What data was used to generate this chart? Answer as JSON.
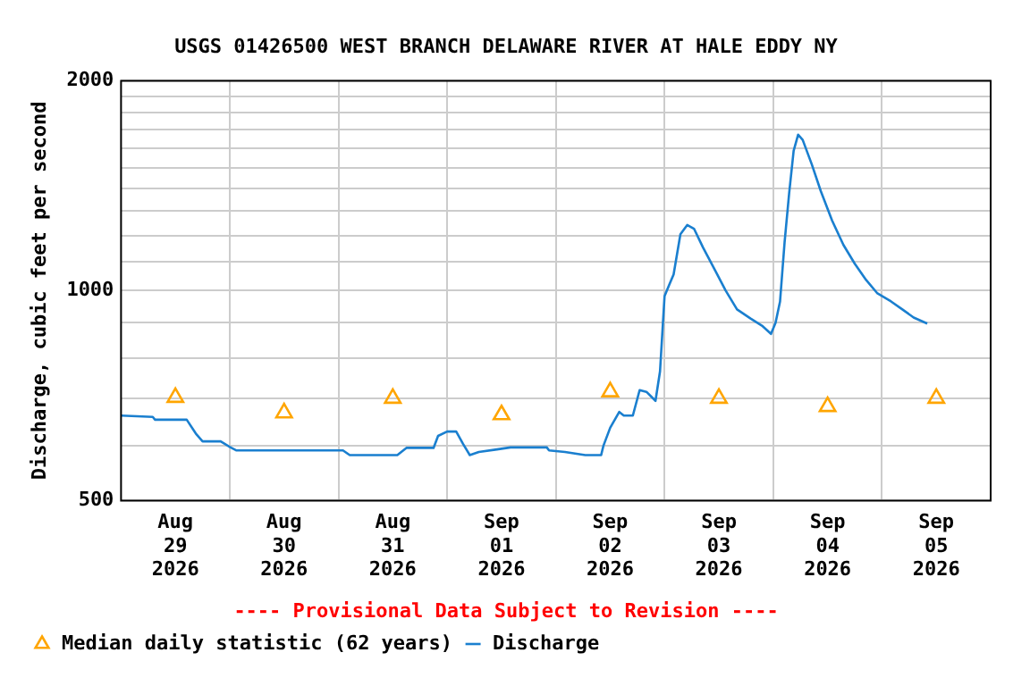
{
  "chart_data": {
    "type": "line",
    "title": "USGS 01426500 WEST BRANCH DELAWARE RIVER AT HALE EDDY NY",
    "ylabel": "Discharge, cubic feet per second",
    "log": true,
    "grid": true,
    "legend": "bottom",
    "ylim": [
      500,
      2000
    ],
    "yticks": [
      500,
      {
        "value": 600,
        "label": null
      },
      {
        "value": 700,
        "label": null
      },
      {
        "value": 800,
        "label": null
      },
      {
        "value": 900,
        "label": null
      },
      1000,
      {
        "value": 1100,
        "label": null
      },
      {
        "value": 1200,
        "label": null
      },
      {
        "value": 1300,
        "label": null
      },
      {
        "value": 1400,
        "label": null
      },
      {
        "value": 1500,
        "label": null
      },
      {
        "value": 1600,
        "label": null
      },
      {
        "value": 1700,
        "label": null
      },
      {
        "value": 1800,
        "label": null
      },
      {
        "value": 1900,
        "label": null
      },
      2000
    ],
    "xlim": [
      "2026-08-29T00:00",
      "2026-09-06T00:00"
    ],
    "xticks": [
      {
        "value": "2026-08-29T12:00",
        "label": "Aug\n29\n2026"
      },
      {
        "value": "2026-08-30T00:00",
        "label": null
      },
      {
        "value": "2026-08-30T12:00",
        "label": "Aug\n30\n2026"
      },
      {
        "value": "2026-08-31T00:00",
        "label": null
      },
      {
        "value": "2026-08-31T12:00",
        "label": "Aug\n31\n2026"
      },
      {
        "value": "2026-09-01T00:00",
        "label": null
      },
      {
        "value": "2026-09-01T12:00",
        "label": "Sep\n01\n2026"
      },
      {
        "value": "2026-09-02T00:00",
        "label": null
      },
      {
        "value": "2026-09-02T12:00",
        "label": "Sep\n02\n2026"
      },
      {
        "value": "2026-09-03T00:00",
        "label": null
      },
      {
        "value": "2026-09-03T12:00",
        "label": "Sep\n03\n2026"
      },
      {
        "value": "2026-09-04T00:00",
        "label": null
      },
      {
        "value": "2026-09-04T12:00",
        "label": "Sep\n04\n2026"
      },
      {
        "value": "2026-09-05T00:00",
        "label": null
      },
      {
        "value": "2026-09-05T12:00",
        "label": "Sep\n05\n2026"
      }
    ],
    "annotations": [
      "---- Provisional Data Subject to Revision ----"
    ],
    "series": [
      {
        "name": "Median daily statistic (62 years)",
        "type": "scatter",
        "marker": "triangle",
        "color": "#ffa500",
        "x": [
          "2026-08-29T12:00",
          "2026-08-30T12:00",
          "2026-08-31T12:00",
          "2026-09-01T12:00",
          "2026-09-02T12:00",
          "2026-09-03T12:00",
          "2026-09-04T12:00",
          "2026-09-05T12:00"
        ],
        "values": [
          703,
          668,
          701,
          664,
          716,
          701,
          682,
          701
        ]
      },
      {
        "name": "Discharge",
        "type": "line",
        "marker": "none",
        "line_style": "solid",
        "color": "#1a7fcf",
        "x": [
          "2026-08-29T00:00",
          "2026-08-29T07:00",
          "2026-08-29T07:30",
          "2026-08-29T14:30",
          "2026-08-29T16:30",
          "2026-08-29T18:00",
          "2026-08-29T22:00",
          "2026-08-30T00:00",
          "2026-08-30T01:30",
          "2026-08-31T01:00",
          "2026-08-31T02:30",
          "2026-08-31T13:00",
          "2026-08-31T15:00",
          "2026-08-31T21:00",
          "2026-08-31T22:00",
          "2026-09-01T00:00",
          "2026-09-01T02:00",
          "2026-09-01T03:30",
          "2026-09-01T05:00",
          "2026-09-01T07:00",
          "2026-09-01T11:00",
          "2026-09-01T14:00",
          "2026-09-01T22:00",
          "2026-09-01T22:30",
          "2026-09-02T02:00",
          "2026-09-02T06:30",
          "2026-09-02T10:00",
          "2026-09-02T10:30",
          "2026-09-02T12:00",
          "2026-09-02T14:00",
          "2026-09-02T15:00",
          "2026-09-02T17:00",
          "2026-09-02T18:30",
          "2026-09-02T20:00",
          "2026-09-02T22:00",
          "2026-09-02T23:00",
          "2026-09-03T00:00",
          "2026-09-03T01:00",
          "2026-09-03T02:00",
          "2026-09-03T03:30",
          "2026-09-03T05:00",
          "2026-09-03T06:30",
          "2026-09-03T08:30",
          "2026-09-03T11:00",
          "2026-09-03T13:30",
          "2026-09-03T16:00",
          "2026-09-03T19:00",
          "2026-09-03T21:30",
          "2026-09-03T23:30",
          "2026-09-04T00:30",
          "2026-09-04T01:30",
          "2026-09-04T02:30",
          "2026-09-04T03:30",
          "2026-09-04T04:30",
          "2026-09-04T05:30",
          "2026-09-04T06:30",
          "2026-09-04T08:30",
          "2026-09-04T10:30",
          "2026-09-04T13:00",
          "2026-09-04T15:30",
          "2026-09-04T18:00",
          "2026-09-04T20:30",
          "2026-09-04T23:00",
          "2026-09-05T02:00",
          "2026-09-05T04:30",
          "2026-09-05T07:00",
          "2026-09-05T10:00"
        ],
        "values": [
          662,
          659,
          653,
          653,
          624,
          608,
          608,
          597,
          590,
          590,
          581,
          581,
          595,
          595,
          619,
          628,
          628,
          603,
          581,
          587,
          592,
          596,
          596,
          590,
          587,
          581,
          581,
          599,
          636,
          670,
          662,
          662,
          720,
          716,
          695,
          766,
          982,
          1018,
          1055,
          1205,
          1242,
          1227,
          1153,
          1074,
          1000,
          940,
          912,
          891,
          867,
          899,
          965,
          1173,
          1377,
          1587,
          1674,
          1645,
          1518,
          1389,
          1260,
          1163,
          1093,
          1036,
          991,
          965,
          940,
          915,
          897
        ]
      }
    ]
  }
}
